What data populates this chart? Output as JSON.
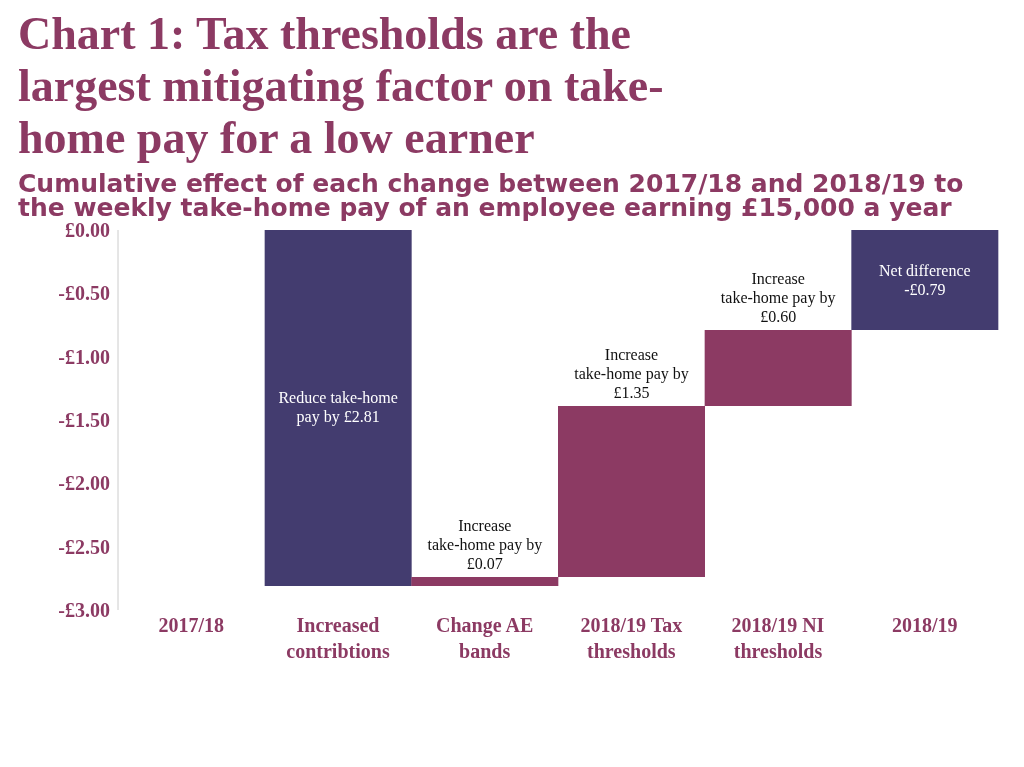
{
  "chart_data": {
    "type": "bar",
    "title": "Chart 1: Tax thresholds are the largest mitigating factor on take-home pay for a low earner",
    "subtitle": "Cumulative effect of each change between 2017/18 and 2018/19 to the weekly take-home pay of an employee earning £15,000 a year",
    "categories": [
      "2017/18",
      "Increased contribtions",
      "Change AE bands",
      "2018/19 Tax thresholds",
      "2018/19 NI thresholds",
      "2018/19"
    ],
    "values": [
      null,
      -2.81,
      0.07,
      1.35,
      0.6,
      -0.79
    ],
    "base": [
      null,
      0,
      -2.81,
      -2.74,
      -1.39,
      0
    ],
    "colors": [
      "#433c6f",
      "#433c6f",
      "#8c3a63",
      "#8c3a63",
      "#8c3a63",
      "#433c6f"
    ],
    "value_labels": [
      null,
      "Reduce take-home pay by £2.81",
      "Increase take-home pay by £0.07",
      "Increase take-home pay by £1.35",
      "Increase take-home pay by £0.60",
      "Net difference -£0.79"
    ],
    "ylim": [
      -3,
      0
    ],
    "yticks": [
      {
        "value": 0,
        "label": "£0.00"
      },
      {
        "value": -0.5,
        "label": "-£0.50"
      },
      {
        "value": -1,
        "label": "-£1.00"
      },
      {
        "value": -1.5,
        "label": "-£1.50"
      },
      {
        "value": -2,
        "label": "-£2.00"
      },
      {
        "value": -2.5,
        "label": "-£2.50"
      },
      {
        "value": -3,
        "label": "-£3.00"
      }
    ],
    "grid": false,
    "legend": false
  }
}
